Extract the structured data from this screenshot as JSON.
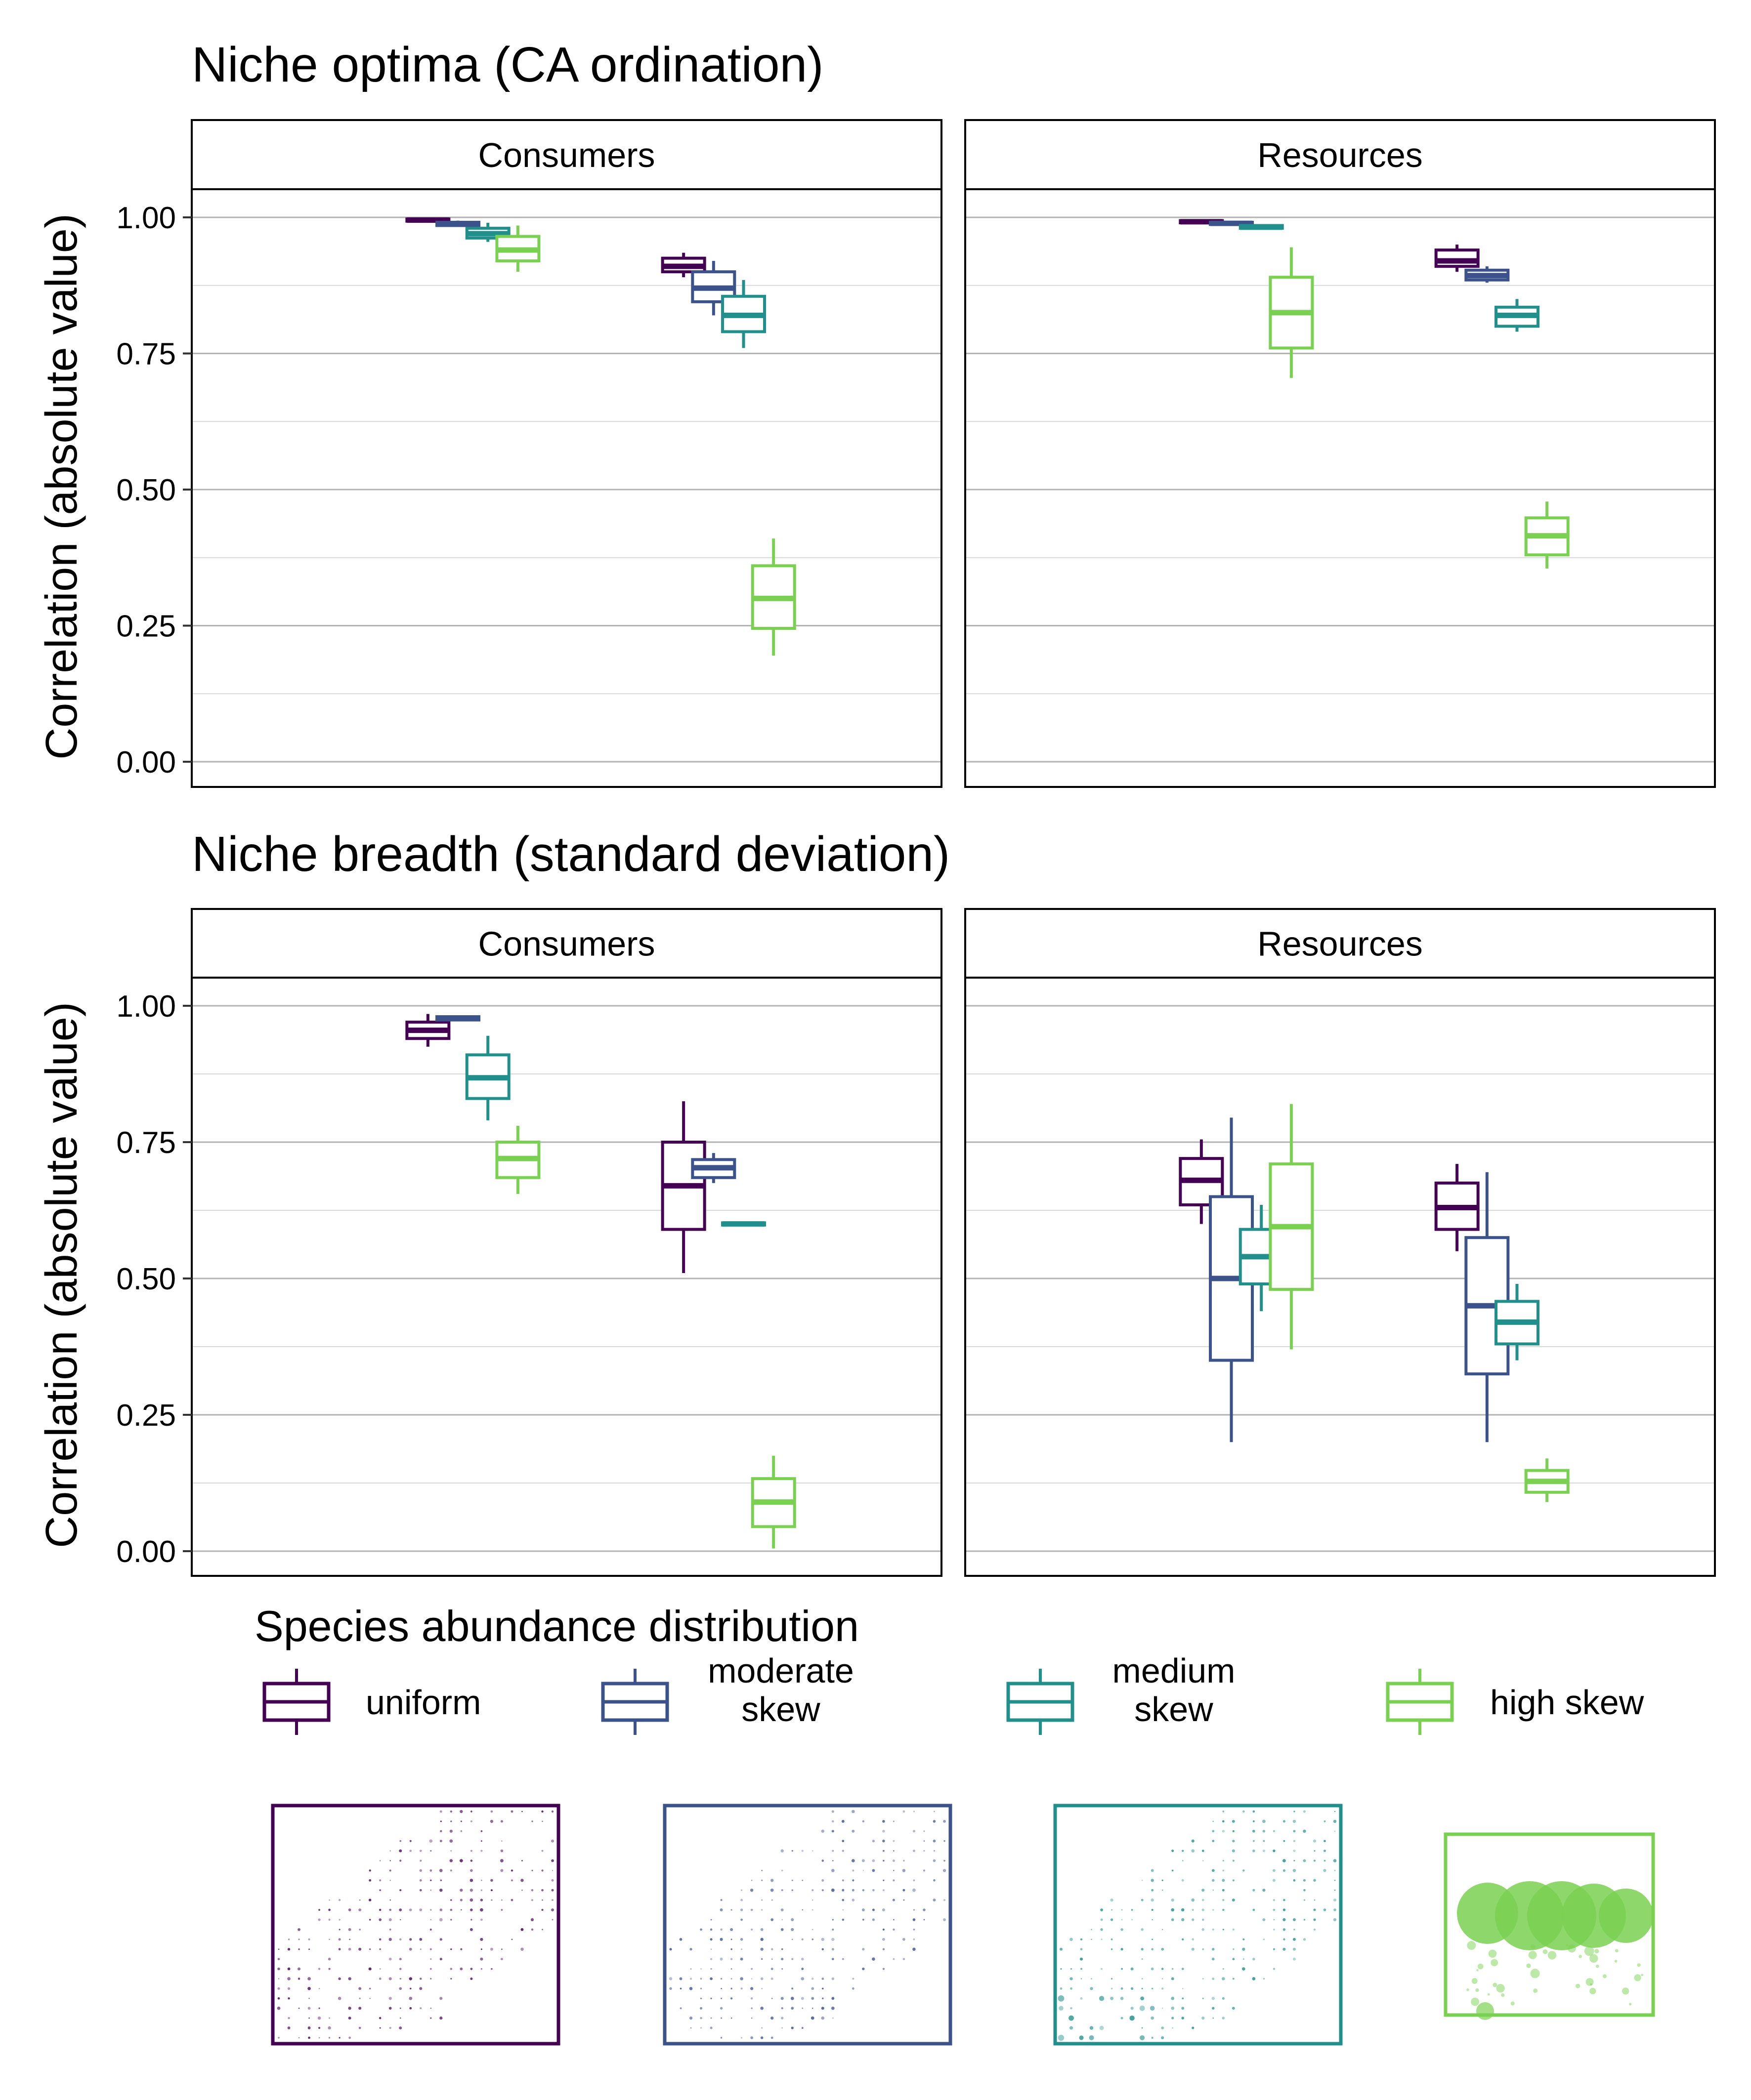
{
  "legend": {
    "title": "Species abundance distribution",
    "items": [
      {
        "key": "uniform",
        "lines": [
          "uniform"
        ],
        "color": "#440154"
      },
      {
        "key": "moderate",
        "lines": [
          "moderate",
          "skew"
        ],
        "color": "#3B528B"
      },
      {
        "key": "medium",
        "lines": [
          "medium",
          "skew"
        ],
        "color": "#21908C"
      },
      {
        "key": "high",
        "lines": [
          "high skew"
        ],
        "color": "#7AD151"
      }
    ]
  },
  "chart_data": [
    {
      "type": "boxplot",
      "title": "Niche optima (CA ordination)",
      "ylabel": "Correlation (absolute value)",
      "ylim": [
        -0.05,
        1.07
      ],
      "yticks": [
        "0.00",
        "0.25",
        "0.50",
        "0.75",
        "1.00"
      ],
      "yticks_values": [
        0,
        0.25,
        0.5,
        0.75,
        1.0
      ],
      "grid": true,
      "panels": [
        {
          "label": "Consumers",
          "groups": [
            {
              "position": 1,
              "boxes": [
                {
                  "series": "uniform",
                  "min": 0.99,
                  "q1": 0.993,
                  "median": 0.995,
                  "q3": 0.997,
                  "max": 1.0
                },
                {
                  "series": "moderate skew",
                  "min": 0.983,
                  "q1": 0.985,
                  "median": 0.988,
                  "q3": 0.991,
                  "max": 0.994
                },
                {
                  "series": "medium skew",
                  "min": 0.955,
                  "q1": 0.962,
                  "median": 0.97,
                  "q3": 0.98,
                  "max": 0.99
                },
                {
                  "series": "high skew",
                  "min": 0.9,
                  "q1": 0.92,
                  "median": 0.94,
                  "q3": 0.965,
                  "max": 0.985
                }
              ]
            },
            {
              "position": 2,
              "boxes": [
                {
                  "series": "uniform",
                  "min": 0.89,
                  "q1": 0.9,
                  "median": 0.91,
                  "q3": 0.925,
                  "max": 0.935
                },
                {
                  "series": "moderate skew",
                  "min": 0.82,
                  "q1": 0.845,
                  "median": 0.87,
                  "q3": 0.9,
                  "max": 0.92
                },
                {
                  "series": "medium skew",
                  "min": 0.76,
                  "q1": 0.79,
                  "median": 0.82,
                  "q3": 0.855,
                  "max": 0.885
                },
                {
                  "series": "high skew",
                  "min": 0.195,
                  "q1": 0.245,
                  "median": 0.3,
                  "q3": 0.36,
                  "max": 0.41
                }
              ]
            }
          ]
        },
        {
          "label": "Resources",
          "groups": [
            {
              "position": 1,
              "boxes": [
                {
                  "series": "uniform",
                  "min": 0.989,
                  "q1": 0.99,
                  "median": 0.992,
                  "q3": 0.994,
                  "max": 0.995
                },
                {
                  "series": "moderate skew",
                  "min": 0.986,
                  "q1": 0.987,
                  "median": 0.989,
                  "q3": 0.991,
                  "max": 0.992
                },
                {
                  "series": "medium skew",
                  "min": 0.978,
                  "q1": 0.98,
                  "median": 0.982,
                  "q3": 0.985,
                  "max": 0.987
                },
                {
                  "series": "high skew",
                  "min": 0.705,
                  "q1": 0.76,
                  "median": 0.825,
                  "q3": 0.89,
                  "max": 0.945
                }
              ]
            },
            {
              "position": 2,
              "boxes": [
                {
                  "series": "uniform",
                  "min": 0.9,
                  "q1": 0.91,
                  "median": 0.92,
                  "q3": 0.94,
                  "max": 0.95
                },
                {
                  "series": "moderate skew",
                  "min": 0.88,
                  "q1": 0.885,
                  "median": 0.893,
                  "q3": 0.903,
                  "max": 0.91
                },
                {
                  "series": "medium skew",
                  "min": 0.79,
                  "q1": 0.8,
                  "median": 0.82,
                  "q3": 0.835,
                  "max": 0.85
                },
                {
                  "series": "high skew",
                  "min": 0.355,
                  "q1": 0.38,
                  "median": 0.415,
                  "q3": 0.448,
                  "max": 0.478
                }
              ]
            }
          ]
        }
      ]
    },
    {
      "type": "boxplot",
      "title": "Niche breadth (standard deviation)",
      "ylabel": "Correlation (absolute value)",
      "ylim": [
        -0.05,
        1.07
      ],
      "yticks": [
        "0.00",
        "0.25",
        "0.50",
        "0.75",
        "1.00"
      ],
      "yticks_values": [
        0,
        0.25,
        0.5,
        0.75,
        1.0
      ],
      "grid": true,
      "panels": [
        {
          "label": "Consumers",
          "groups": [
            {
              "position": 1,
              "boxes": [
                {
                  "series": "uniform",
                  "min": 0.925,
                  "q1": 0.94,
                  "median": 0.955,
                  "q3": 0.97,
                  "max": 0.985
                },
                {
                  "series": "moderate skew",
                  "min": 0.972,
                  "q1": 0.974,
                  "median": 0.977,
                  "q3": 0.98,
                  "max": 0.982
                },
                {
                  "series": "medium skew",
                  "min": 0.79,
                  "q1": 0.83,
                  "median": 0.868,
                  "q3": 0.91,
                  "max": 0.945
                },
                {
                  "series": "high skew",
                  "min": 0.655,
                  "q1": 0.685,
                  "median": 0.72,
                  "q3": 0.75,
                  "max": 0.78
                }
              ]
            },
            {
              "position": 2,
              "boxes": [
                {
                  "series": "uniform",
                  "min": 0.51,
                  "q1": 0.59,
                  "median": 0.67,
                  "q3": 0.75,
                  "max": 0.825
                },
                {
                  "series": "moderate skew",
                  "min": 0.675,
                  "q1": 0.685,
                  "median": 0.703,
                  "q3": 0.718,
                  "max": 0.73
                },
                {
                  "series": "medium skew",
                  "min": 0.597,
                  "q1": 0.598,
                  "median": 0.6,
                  "q3": 0.602,
                  "max": 0.603
                },
                {
                  "series": "high skew",
                  "min": 0.005,
                  "q1": 0.045,
                  "median": 0.09,
                  "q3": 0.133,
                  "max": 0.175
                }
              ]
            }
          ]
        },
        {
          "label": "Resources",
          "groups": [
            {
              "position": 1,
              "boxes": [
                {
                  "series": "uniform",
                  "min": 0.6,
                  "q1": 0.635,
                  "median": 0.68,
                  "q3": 0.72,
                  "max": 0.755
                },
                {
                  "series": "moderate skew",
                  "min": 0.2,
                  "q1": 0.35,
                  "median": 0.5,
                  "q3": 0.65,
                  "max": 0.795
                },
                {
                  "series": "medium skew",
                  "min": 0.44,
                  "q1": 0.49,
                  "median": 0.54,
                  "q3": 0.59,
                  "max": 0.635
                },
                {
                  "series": "high skew",
                  "min": 0.37,
                  "q1": 0.48,
                  "median": 0.595,
                  "q3": 0.71,
                  "max": 0.82
                }
              ]
            },
            {
              "position": 2,
              "boxes": [
                {
                  "series": "uniform",
                  "min": 0.55,
                  "q1": 0.59,
                  "median": 0.63,
                  "q3": 0.675,
                  "max": 0.71
                },
                {
                  "series": "moderate skew",
                  "min": 0.2,
                  "q1": 0.325,
                  "median": 0.45,
                  "q3": 0.575,
                  "max": 0.695
                },
                {
                  "series": "medium skew",
                  "min": 0.35,
                  "q1": 0.38,
                  "median": 0.42,
                  "q3": 0.458,
                  "max": 0.49
                },
                {
                  "series": "high skew",
                  "min": 0.09,
                  "q1": 0.108,
                  "median": 0.128,
                  "q3": 0.148,
                  "max": 0.17
                }
              ]
            }
          ]
        }
      ]
    }
  ]
}
